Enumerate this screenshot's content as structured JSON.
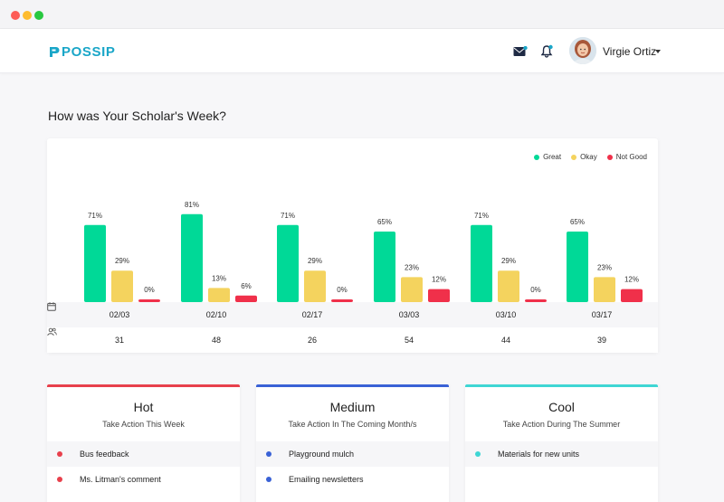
{
  "app": {
    "logo_text": "POSSIP",
    "user_name": "Virgie Ortiz"
  },
  "page_title": "How was Your Scholar's Week?",
  "colors": {
    "great": "#00d997",
    "okay": "#f4d35e",
    "not_good": "#f0304a",
    "hot": "#e8404c",
    "medium": "#3a62d6",
    "cool": "#3fd6d4",
    "brand": "#1aa6c8"
  },
  "legend": [
    {
      "label": "Great",
      "color": "#00d997"
    },
    {
      "label": "Okay",
      "color": "#f4d35e"
    },
    {
      "label": "Not Good",
      "color": "#f0304a"
    }
  ],
  "chart_data": {
    "type": "bar",
    "categories": [
      "02/03",
      "02/10",
      "02/17",
      "03/03",
      "03/10",
      "03/17"
    ],
    "series": [
      {
        "name": "Great",
        "values": [
          71,
          81,
          71,
          65,
          71,
          65
        ]
      },
      {
        "name": "Okay",
        "values": [
          29,
          13,
          29,
          23,
          29,
          23
        ]
      },
      {
        "name": "Not Good",
        "values": [
          0,
          6,
          0,
          12,
          0,
          12
        ]
      }
    ],
    "counts": [
      "31",
      "48",
      "26",
      "54",
      "44",
      "39"
    ],
    "value_suffix": "%",
    "ylim": [
      0,
      100
    ],
    "legend_position": "top-right",
    "grid": false
  },
  "priority_cards": [
    {
      "title": "Hot",
      "subtitle": "Take Action This Week",
      "items": [
        "Bus feedback",
        "Ms. Litman's comment"
      ]
    },
    {
      "title": "Medium",
      "subtitle": "Take Action In The Coming Month/s",
      "items": [
        "Playground mulch",
        "Emailing newsletters"
      ]
    },
    {
      "title": "Cool",
      "subtitle": "Take Action During The Summer",
      "items": [
        "Materials for new units"
      ]
    }
  ]
}
